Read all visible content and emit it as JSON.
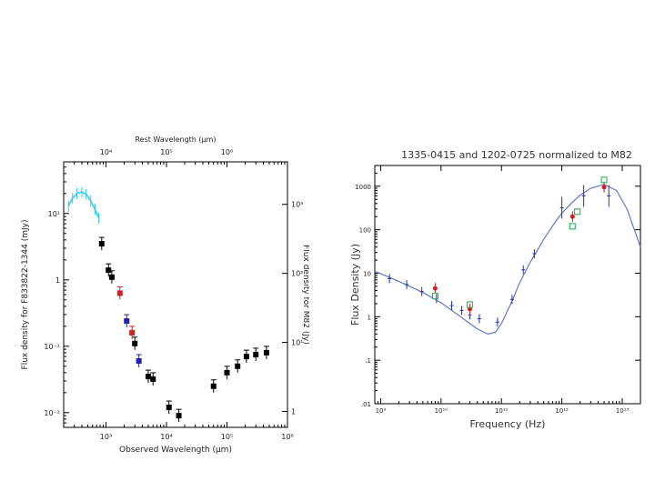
{
  "chart_data": [
    {
      "type": "scatter",
      "title": "",
      "top_axis_label": "Rest Wavelength (μm)",
      "top_ticks": [
        "10⁴",
        "10⁵",
        "10⁶"
      ],
      "xlabel": "Observed Wavelength (μm)",
      "ylabel": "Flux density for F833822-1344 (mJy)",
      "y2label": "Flux density for M82 (Jy)",
      "x_ticks": [
        "10³",
        "10⁴",
        "10⁵",
        "10⁶"
      ],
      "y_ticks": [
        "10⁻²",
        "10⁻¹",
        "1",
        "10¹"
      ],
      "y2_ticks": [
        "1",
        "10¹",
        "10²",
        "10³"
      ],
      "x_scale": "log",
      "y_scale": "log",
      "xlim": [
        200,
        1000000
      ],
      "ylim": [
        0.006,
        60
      ],
      "series": [
        {
          "style": "line",
          "color": "#33ccee",
          "x": [
            240,
            280,
            330,
            400,
            470,
            560,
            660,
            760
          ],
          "y": [
            13,
            17,
            20,
            21,
            19.5,
            15.5,
            11.5,
            8.5
          ]
        },
        {
          "style": "marker",
          "color": "#000000",
          "x": [
            850,
            1100,
            1250,
            3000,
            11000,
            16000,
            60000,
            100000,
            150000
          ],
          "y": [
            3.5,
            1.4,
            1.1,
            0.11,
            0.012,
            0.009,
            0.025,
            0.04,
            0.05
          ]
        },
        {
          "style": "marker",
          "color": "#cc2222",
          "x": [
            1700,
            2700
          ],
          "y": [
            0.63,
            0.16
          ]
        },
        {
          "style": "marker",
          "color": "#2222aa",
          "x": [
            2200,
            3500
          ],
          "y": [
            0.24,
            0.06
          ]
        },
        {
          "style": "marker",
          "color": "#000000",
          "x": [
            5000,
            6000,
            210000,
            300000,
            450000
          ],
          "y": [
            0.035,
            0.032,
            0.07,
            0.075,
            0.08
          ]
        }
      ]
    },
    {
      "type": "scatter",
      "title": "1335-0415 and 1202-0725 normalized to M82",
      "xlabel": "Frequency (Hz)",
      "ylabel": "Flux Density (Jy)",
      "x_ticks": [
        "10⁹",
        "10¹⁰",
        "10¹¹",
        "10¹²",
        "10¹³"
      ],
      "y_ticks": [
        ".01",
        ".1",
        "1",
        "10",
        "100",
        "1000"
      ],
      "x_scale": "log",
      "y_scale": "log",
      "xlim": [
        800000000,
        20000000000000
      ],
      "ylim": [
        0.01,
        3000
      ],
      "model_curve": {
        "color": "#6677cc",
        "x": [
          800000000,
          1000000000,
          2000000000,
          5000000000,
          10000000000,
          20000000000,
          40000000000,
          60000000000,
          80000000000,
          100000000000,
          150000000000,
          200000000000,
          300000000000,
          500000000000,
          800000000000,
          1000000000000,
          1500000000000,
          2000000000000,
          3000000000000,
          5000000000000,
          8000000000000,
          12000000000000,
          20000000000000
        ],
        "y": [
          11,
          9.8,
          6.5,
          3.6,
          2.1,
          1.05,
          0.52,
          0.4,
          0.44,
          0.7,
          2.3,
          6,
          18,
          60,
          160,
          240,
          430,
          620,
          900,
          1100,
          800,
          300,
          40
        ]
      },
      "series": [
        {
          "name_color": "#2233aa",
          "marker": "errorbar",
          "x": [
            1400000000,
            2700000000,
            4800000000,
            8400000000,
            15000000000,
            22000000000,
            30000000000,
            43000000000,
            86000000000,
            150000000000,
            230000000000,
            350000000000,
            1000000000000,
            2300000000000,
            6000000000000
          ],
          "y": [
            7.5,
            5.5,
            3.8,
            2.6,
            1.8,
            1.4,
            1.1,
            0.9,
            0.75,
            2.5,
            12,
            28,
            320,
            600,
            600
          ]
        },
        {
          "name_color": "#cc2222",
          "marker": "dot",
          "x": [
            8000000000,
            30000000000,
            1500000000000,
            5000000000000
          ],
          "y": [
            4.5,
            1.5,
            200,
            950
          ]
        },
        {
          "name_color": "#33bb66",
          "marker": "open-square",
          "x": [
            8000000000,
            30000000000,
            1500000000000,
            1800000000000,
            5000000000000
          ],
          "y": [
            3.0,
            1.9,
            120,
            260,
            1400
          ]
        }
      ]
    }
  ]
}
